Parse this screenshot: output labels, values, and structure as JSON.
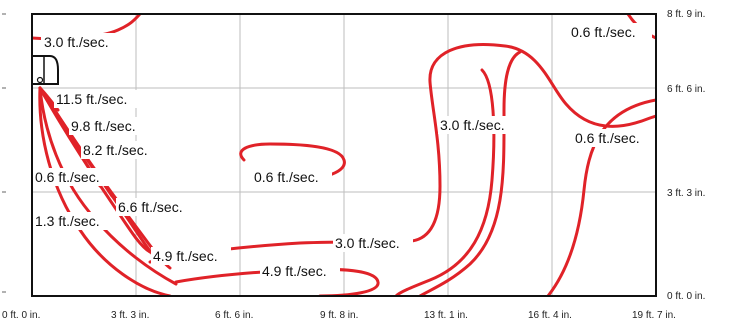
{
  "chart_data": {
    "type": "contour",
    "title": "",
    "xlabel": "",
    "ylabel": "",
    "grid": true,
    "colors": {
      "contour": "#e02228",
      "grid": "#bdbdbd",
      "frame": "#111111"
    },
    "x_ticks": [
      "0 ft. 0 in.",
      "3 ft. 3 in.",
      "6 ft. 6 in.",
      "9 ft. 8 in.",
      "13 ft. 1 in.",
      "16 ft. 4 in.",
      "19 ft. 7 in."
    ],
    "y_ticks": [
      "0 ft. 0 in.",
      "3 ft. 3 in.",
      "6 ft. 6 in.",
      "8 ft. 9 in."
    ],
    "icons": [
      "air-conditioner-unit-icon"
    ],
    "contour_labels": [
      "3.0 ft./sec.",
      "0.6 ft./sec.",
      "11.5 ft./sec.",
      "9.8 ft./sec.",
      "8.2 ft./sec.",
      "0.6 ft./sec.",
      "6.6 ft./sec.",
      "1.3 ft./sec.",
      "4.9 ft./sec.",
      "4.9 ft./sec.",
      "3.0 ft./sec.",
      "0.6 ft./sec.",
      "3.0 ft./sec.",
      "0.6 ft./sec."
    ]
  }
}
